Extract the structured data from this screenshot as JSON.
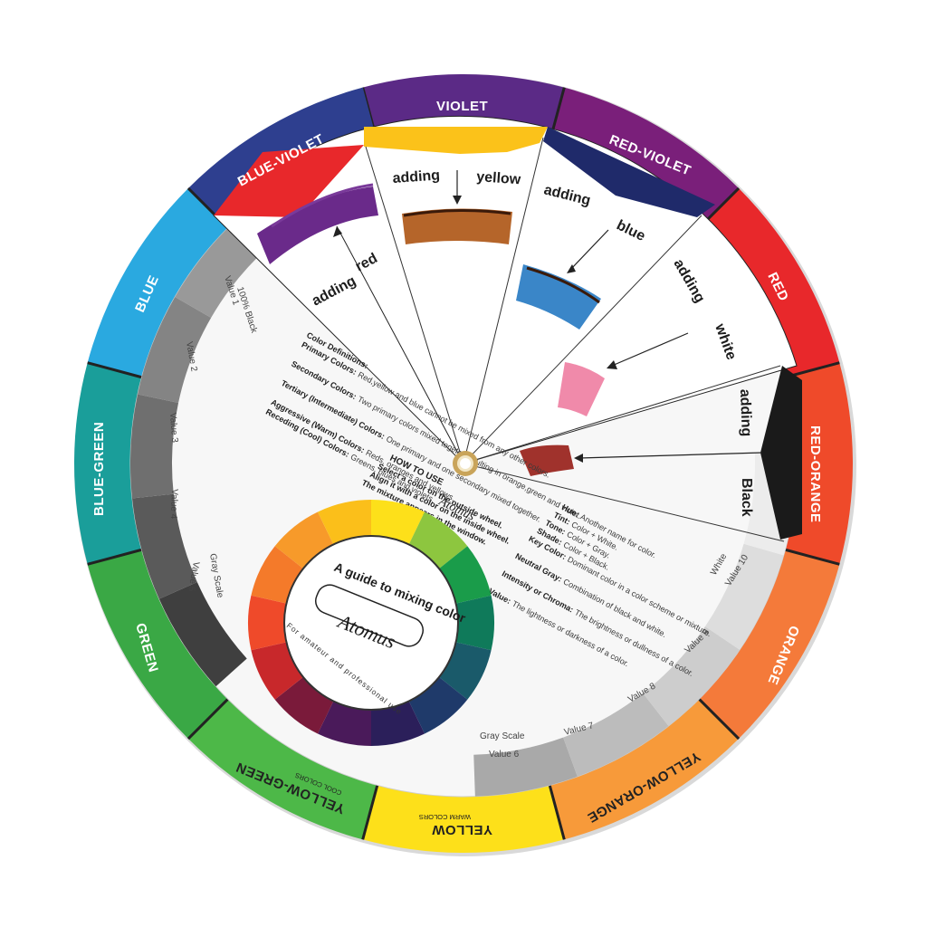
{
  "outer_ring": {
    "segments": [
      {
        "label": "VIOLET",
        "color": "#5b2a86"
      },
      {
        "label": "RED-VIOLET",
        "color": "#7a1f7a"
      },
      {
        "label": "RED",
        "color": "#e8282b"
      },
      {
        "label": "RED-ORANGE",
        "color": "#ef4a2a"
      },
      {
        "label": "ORANGE",
        "color": "#f47a3a"
      },
      {
        "label": "YELLOW-ORANGE",
        "color": "#f79a3a"
      },
      {
        "label": "YELLOW",
        "color": "#fde01a"
      },
      {
        "label": "YELLOW-GREEN",
        "color": "#4db848"
      },
      {
        "label": "GREEN",
        "color": "#3aa845"
      },
      {
        "label": "BLUE-GREEN",
        "color": "#1a9e9a"
      },
      {
        "label": "BLUE",
        "color": "#2aa9e0"
      },
      {
        "label": "BLUE-VIOLET",
        "color": "#2e3f8f"
      }
    ],
    "cool_colors_label": "COOL COLORS",
    "warm_colors_label": "WARM COLORS"
  },
  "mixing_windows": {
    "adding_word": "adding",
    "items": [
      {
        "name": "red",
        "swatch": "#6a2a8a"
      },
      {
        "name": "yellow",
        "swatch": "#b5652a"
      },
      {
        "name": "blue",
        "swatch": "#3a86c8"
      },
      {
        "name": "white",
        "swatch": "#f08aaa"
      },
      {
        "name": "Black",
        "swatch": "#a0322c"
      }
    ]
  },
  "gray_scale": {
    "title": "Gray Scale",
    "left_labels": [
      "100% Black",
      "Value 1",
      "Value 2",
      "Value 3",
      "Value 4",
      "Value 5"
    ],
    "right_labels": [
      "Value 6",
      "Value 7",
      "Value 8",
      "Value 9",
      "Value 10",
      "White"
    ]
  },
  "definitions": {
    "heading": "Color Definitions:",
    "lines": [
      {
        "bold": "Primary Colors:",
        "text": "Red,yellow and blue cannot be mixed from any other colors."
      },
      {
        "bold": "Secondary Colors:",
        "text": "Two primary colors mixed togeter resulting in orange,green and violet."
      },
      {
        "bold": "Tertiary (Intermediate) Colors:",
        "text": "One primary and one secondary mixed together."
      },
      {
        "bold": "Aggressive (Warm) Colors:",
        "text": "Reds, oranges and yellows."
      },
      {
        "bold": "Receding (Cool) Colors:",
        "text": "Greens, blues and violets."
      }
    ]
  },
  "how_to_use": {
    "title": "HOW TO USE",
    "brand": "Atomus",
    "lines": [
      "Select a color on the outside wheel.",
      "Align it with a color on the inside wheel.",
      "The mixture appears in the window."
    ]
  },
  "terms": [
    {
      "bold": "Hue:",
      "text": "Another name for color."
    },
    {
      "bold": "Tint:",
      "text": "Color + White."
    },
    {
      "bold": "Tone:",
      "text": "Color + Gray."
    },
    {
      "bold": "Shade:",
      "text": "Color + Black."
    },
    {
      "bold": "Key Color:",
      "text": "Dominant color in a color scheme or mixture."
    },
    {
      "bold": "Neutral Gray:",
      "text": "Combination of black and white."
    },
    {
      "bold": "Intensity or Chroma:",
      "text": "The brightness or dullness of a color."
    },
    {
      "bold": "Value:",
      "text": "The lightness or darkness of a color."
    }
  ],
  "guide": {
    "title": "A guide to mixing color",
    "brand": "Atomus",
    "subtitle": "For amateur and professional use"
  },
  "inner_wheel_colors": [
    "#fde01a",
    "#8dc63f",
    "#1a9c4a",
    "#0f7a5a",
    "#1a5a6a",
    "#1f3a6a",
    "#2b1f5a",
    "#4a1a5a",
    "#7a1a3a",
    "#c8282b",
    "#ef4a2a",
    "#f47a2a",
    "#f79a2a",
    "#fbbf1a"
  ]
}
